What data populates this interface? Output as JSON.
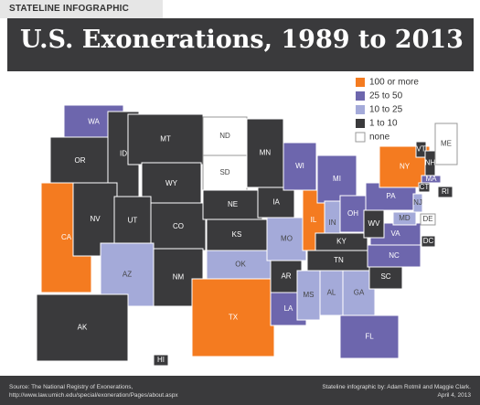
{
  "header": {
    "tag": "STATELINE INFOGRAPHIC",
    "title": "U.S. Exonerations, 1989 to 2013"
  },
  "legend": [
    {
      "label": "100 or more",
      "color": "#f47b20"
    },
    {
      "label": "25 to 50",
      "color": "#6d66ad"
    },
    {
      "label": "10 to 25",
      "color": "#a4aad9"
    },
    {
      "label": "1 to 10",
      "color": "#3a3a3c"
    },
    {
      "label": "none",
      "color": "#ffffff"
    }
  ],
  "states": [
    {
      "label": "WA",
      "legend": 1
    },
    {
      "label": "OR",
      "legend": 3
    },
    {
      "label": "CA",
      "legend": 0
    },
    {
      "label": "ID",
      "legend": 3
    },
    {
      "label": "NV",
      "legend": 3
    },
    {
      "label": "MT",
      "legend": 3
    },
    {
      "label": "WY",
      "legend": 3
    },
    {
      "label": "UT",
      "legend": 3
    },
    {
      "label": "CO",
      "legend": 3
    },
    {
      "label": "AZ",
      "legend": 2
    },
    {
      "label": "NM",
      "legend": 3
    },
    {
      "label": "ND",
      "legend": 4
    },
    {
      "label": "SD",
      "legend": 4
    },
    {
      "label": "NE",
      "legend": 3
    },
    {
      "label": "KS",
      "legend": 3
    },
    {
      "label": "OK",
      "legend": 2
    },
    {
      "label": "TX",
      "legend": 0
    },
    {
      "label": "MN",
      "legend": 3
    },
    {
      "label": "IA",
      "legend": 3
    },
    {
      "label": "MO",
      "legend": 2
    },
    {
      "label": "AR",
      "legend": 3
    },
    {
      "label": "LA",
      "legend": 1
    },
    {
      "label": "WI",
      "legend": 1
    },
    {
      "label": "IL",
      "legend": 0
    },
    {
      "label": "MI",
      "legend": 1
    },
    {
      "label": "IN",
      "legend": 2
    },
    {
      "label": "OH",
      "legend": 1
    },
    {
      "label": "KY",
      "legend": 3
    },
    {
      "label": "TN",
      "legend": 3
    },
    {
      "label": "MS",
      "legend": 2
    },
    {
      "label": "AL",
      "legend": 2
    },
    {
      "label": "GA",
      "legend": 2
    },
    {
      "label": "FL",
      "legend": 1
    },
    {
      "label": "SC",
      "legend": 3
    },
    {
      "label": "NC",
      "legend": 1
    },
    {
      "label": "VA",
      "legend": 1
    },
    {
      "label": "WV",
      "legend": 3
    },
    {
      "label": "PA",
      "legend": 1
    },
    {
      "label": "NY",
      "legend": 0
    },
    {
      "label": "VT",
      "legend": 3
    },
    {
      "label": "NH",
      "legend": 3
    },
    {
      "label": "ME",
      "legend": 4
    },
    {
      "label": "MA",
      "legend": 1
    },
    {
      "label": "CT",
      "legend": 3
    },
    {
      "label": "RI",
      "legend": 3
    },
    {
      "label": "NJ",
      "legend": 2
    },
    {
      "label": "DE",
      "legend": 4
    },
    {
      "label": "MD",
      "legend": 2
    },
    {
      "label": "DC",
      "legend": 3
    },
    {
      "label": "AK",
      "legend": 3
    },
    {
      "label": "HI",
      "legend": 3
    }
  ],
  "footer": {
    "source": "Source: The National Registry of Exonerations,",
    "url": "http://www.law.umich.edu/special/exoneration/Pages/about.aspx",
    "credit": "Stateline infographic by: Adam Rotmil and Maggie Clark.",
    "date": "April 4, 2013"
  }
}
